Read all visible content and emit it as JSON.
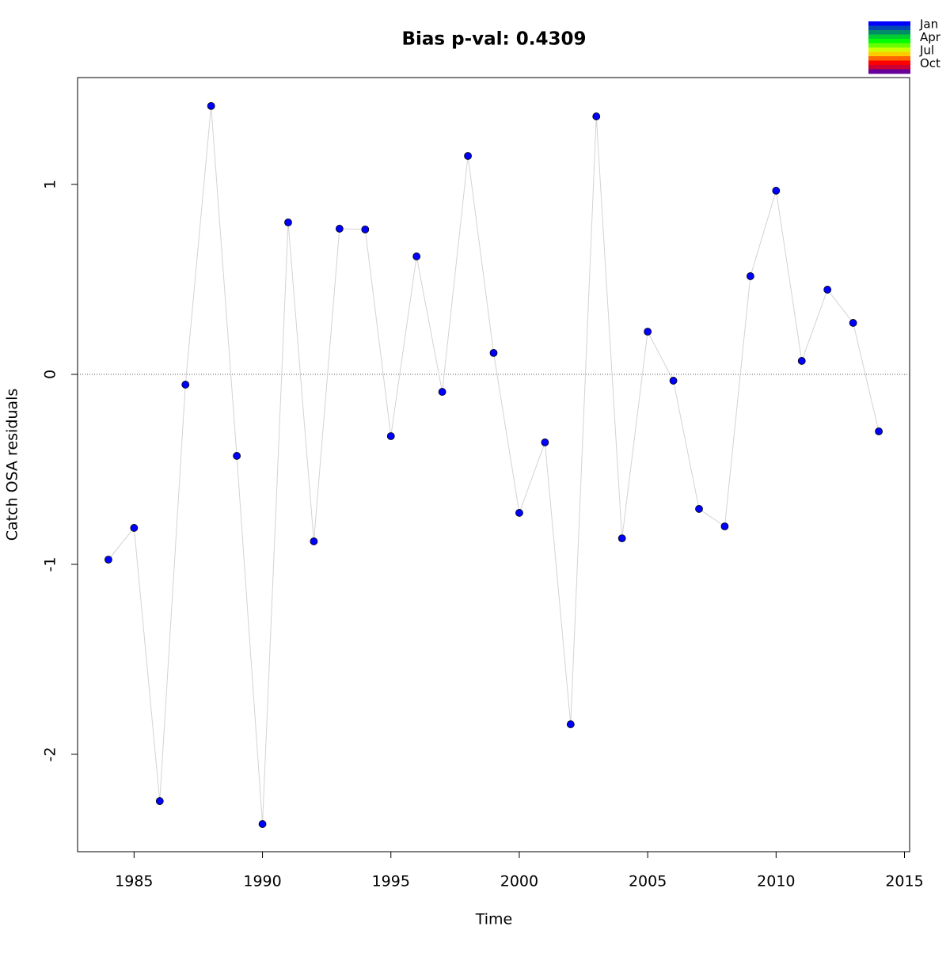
{
  "chart_data": {
    "type": "line",
    "title": "Bias p-val: 0.4309",
    "title_color": "#228b22",
    "x_label": "Time",
    "y_label": "Catch OSA residuals",
    "x": [
      1984,
      1985,
      1986,
      1987,
      1988,
      1989,
      1990,
      1991,
      1992,
      1993,
      1994,
      1995,
      1996,
      1997,
      1998,
      1999,
      2000,
      2001,
      2002,
      2003,
      2004,
      2005,
      2006,
      2007,
      2008,
      2009,
      2010,
      2011,
      2012,
      2013,
      2014
    ],
    "series": [
      {
        "color": "#0000ff",
        "line_color": "#d3d3d3",
        "values": [
          -0.975,
          -0.808,
          -2.246,
          -0.054,
          1.413,
          -0.429,
          -2.367,
          0.8,
          -0.879,
          0.767,
          0.763,
          -0.325,
          0.621,
          -0.092,
          1.15,
          0.113,
          -0.729,
          -0.358,
          -1.842,
          1.358,
          -0.863,
          0.225,
          -0.033,
          -0.708,
          -0.8,
          0.517,
          0.967,
          0.071,
          0.446,
          0.271,
          -0.3
        ]
      }
    ],
    "xlim": [
      1982.8,
      2015.2
    ],
    "xticks": [
      1985,
      1990,
      1995,
      2000,
      2005,
      2010,
      2015
    ],
    "ylim": [
      -2.5125,
      1.5625
    ],
    "yticks": [
      -2,
      -1,
      0,
      1
    ],
    "reference_line": 0,
    "legend": {
      "labels": [
        "Jan",
        "Apr",
        "Jul",
        "Oct"
      ],
      "colors": [
        "#0000ff",
        "#0047b3",
        "#008c66",
        "#00cc33",
        "#00ff00",
        "#66ff00",
        "#ccff00",
        "#ffcc00",
        "#ff6600",
        "#ff0000",
        "#cc0033",
        "#660099"
      ]
    }
  }
}
